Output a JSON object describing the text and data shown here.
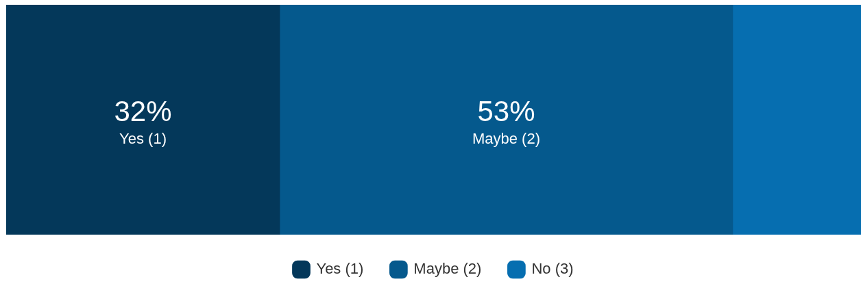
{
  "chart_data": {
    "type": "bar",
    "orientation": "horizontal",
    "stacked": true,
    "categories": [
      null
    ],
    "xlim": [
      0,
      100
    ],
    "legend": "bottom",
    "series": [
      {
        "name": "Yes (1)",
        "color": "#04385a",
        "values": [
          32
        ],
        "value_labels": [
          "32%"
        ]
      },
      {
        "name": "Maybe (2)",
        "color": "#05598d",
        "values": [
          53
        ],
        "value_labels": [
          "53%"
        ]
      },
      {
        "name": "No (3)",
        "color": "#066eb0",
        "values": [
          15
        ],
        "value_labels": [
          null
        ]
      }
    ]
  }
}
